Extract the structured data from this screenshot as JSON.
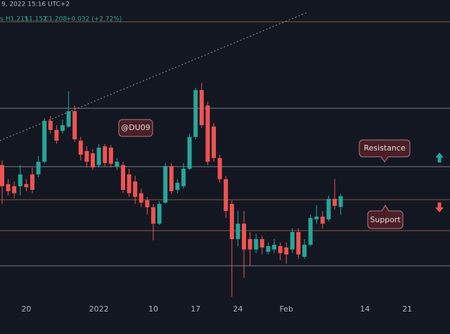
{
  "chart_data": {
    "type": "candlestick",
    "header": {
      "date": "9, 2022 15:16 UTC+2",
      "prefix": "s",
      "high": "H1.215",
      "low": "L1.152",
      "close": "C1.208",
      "change": "+0.032 (+2.72%)"
    },
    "annotations": [
      "@DU09",
      "Resistance",
      "Support"
    ],
    "up_color": "#26a69a",
    "down_color": "#ef5350",
    "ylim": [
      0.891,
      1.794
    ],
    "categories": [
      null,
      null,
      null,
      null,
      "20",
      null,
      null,
      null,
      null,
      null,
      null,
      null,
      null,
      null,
      null,
      null,
      "2022",
      null,
      null,
      null,
      null,
      null,
      null,
      null,
      null,
      "10",
      null,
      null,
      null,
      null,
      null,
      null,
      "17",
      null,
      null,
      null,
      null,
      null,
      null,
      "24",
      null,
      null,
      null,
      null,
      null,
      null,
      null,
      "Feb",
      null,
      null,
      null,
      null,
      null,
      null,
      null,
      null,
      null,
      null,
      null,
      null,
      "14",
      null,
      null,
      null,
      null,
      null,
      null,
      "21",
      null,
      null,
      null,
      null,
      null
    ],
    "open": [
      1.301,
      1.244,
      1.238,
      1.238,
      1.244,
      1.273,
      1.273,
      1.311,
      1.433,
      1.406,
      1.403,
      1.416,
      1.462,
      1.374,
      1.343,
      1.336,
      1.301,
      1.357,
      1.353,
      1.296,
      1.301,
      1.273,
      1.252,
      1.217,
      1.196,
      1.175,
      1.126,
      1.189,
      1.298,
      1.227,
      1.238,
      1.29,
      1.385,
      1.525,
      1.479,
      1.416,
      1.322,
      1.259,
      1.185,
      1.08,
      1.126,
      1.08,
      1.049,
      1.08,
      1.042,
      1.049,
      1.059,
      1.055,
      1.049,
      1.101,
      1.027,
      1.063,
      1.139,
      1.147,
      1.139,
      1.2,
      1.176,
      null,
      null,
      null,
      null,
      null,
      null,
      null,
      null,
      null,
      null,
      null,
      null,
      null,
      null,
      null,
      null
    ],
    "high": [
      1.315,
      1.259,
      1.252,
      1.301,
      1.259,
      1.294,
      1.328,
      1.441,
      1.448,
      1.42,
      1.437,
      1.521,
      1.479,
      1.385,
      1.357,
      1.349,
      1.364,
      1.364,
      1.361,
      1.322,
      1.311,
      1.29,
      1.269,
      1.231,
      1.206,
      1.185,
      1.193,
      1.307,
      1.307,
      1.259,
      1.307,
      1.395,
      1.532,
      1.546,
      1.49,
      1.427,
      1.332,
      1.269,
      1.196,
      1.164,
      1.164,
      1.101,
      1.096,
      1.09,
      1.07,
      1.08,
      1.07,
      1.07,
      1.112,
      1.112,
      1.08,
      1.154,
      1.181,
      1.164,
      1.21,
      1.259,
      1.215,
      null,
      null,
      null,
      null,
      null,
      null,
      null,
      null,
      null,
      null,
      null,
      null,
      null,
      null,
      null,
      null
    ],
    "low": [
      1.185,
      1.21,
      1.202,
      1.21,
      1.223,
      1.217,
      1.265,
      1.307,
      1.395,
      1.364,
      1.395,
      1.412,
      1.37,
      1.315,
      1.294,
      1.286,
      1.294,
      1.298,
      1.294,
      1.286,
      1.217,
      1.206,
      1.185,
      1.175,
      1.154,
      1.076,
      1.122,
      1.185,
      1.214,
      1.217,
      1.231,
      1.286,
      1.378,
      1.412,
      1.301,
      1.311,
      1.248,
      1.143,
      0.908,
      1.059,
      0.964,
      1.0,
      1.038,
      1.034,
      1.034,
      1.038,
      1.017,
      1.006,
      1.038,
      1.021,
      1.021,
      1.059,
      1.126,
      1.112,
      1.133,
      1.168,
      1.152,
      null,
      null,
      null,
      null,
      null,
      null,
      null,
      null,
      null,
      null,
      null,
      null,
      null,
      null,
      null,
      null
    ],
    "close": [
      1.238,
      1.223,
      1.217,
      1.273,
      1.235,
      1.227,
      1.311,
      1.433,
      1.406,
      1.374,
      1.42,
      1.462,
      1.378,
      1.332,
      1.311,
      1.294,
      1.353,
      1.307,
      1.305,
      1.311,
      1.227,
      1.217,
      1.206,
      1.189,
      1.175,
      1.126,
      1.185,
      1.298,
      1.223,
      1.248,
      1.29,
      1.385,
      1.525,
      1.42,
      1.311,
      1.322,
      1.259,
      1.164,
      1.08,
      1.126,
      1.049,
      1.049,
      1.08,
      1.055,
      1.059,
      1.063,
      1.038,
      1.034,
      1.101,
      1.034,
      1.063,
      1.143,
      1.147,
      1.126,
      1.2,
      1.179,
      1.208,
      null,
      null,
      null,
      null,
      null,
      null,
      null,
      null,
      null,
      null,
      null,
      null,
      null,
      null,
      null,
      null
    ]
  }
}
